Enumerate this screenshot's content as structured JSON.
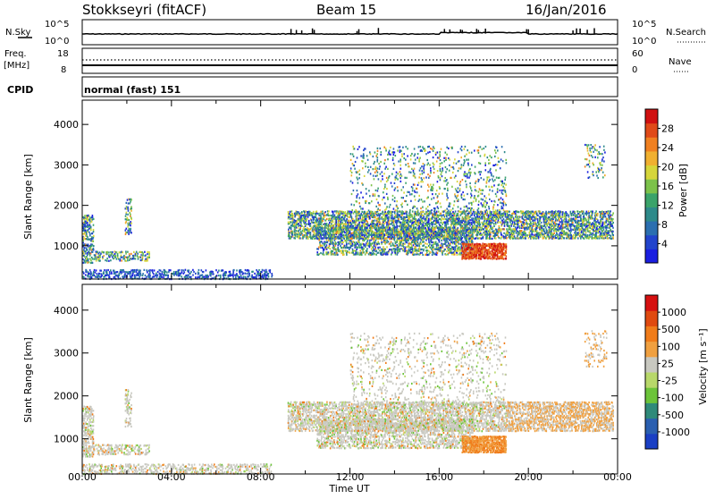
{
  "header": {
    "station": "Stokkseyri (fitACF)",
    "beam": "Beam 15",
    "date": "16/Jan/2016"
  },
  "strip_labels": {
    "nsky": "N.Sky",
    "nsearch": "N.Search",
    "freq_line1": "Freq.",
    "freq_line2": "[MHz]",
    "nave": "Nave",
    "cpid": "CPID",
    "cpid_value": "normal (fast) 151",
    "noise_left_top": "10^5",
    "noise_left_bottom": "10^0",
    "noise_right_top": "10^5",
    "noise_right_bottom": "10^0",
    "freq_left_top": "18",
    "freq_left_bottom": "8",
    "nave_right_top": "60",
    "nave_right_bottom": "0"
  },
  "colors": {
    "power": [
      "#1a1ee0",
      "#2244cc",
      "#2b6fb0",
      "#2e8a8a",
      "#3aa36a",
      "#7cc24a",
      "#d6d63a",
      "#f0b030",
      "#f08020",
      "#e04a18",
      "#d01010"
    ],
    "velocity": [
      "#1a3fc4",
      "#2a5fb0",
      "#2f8a7a",
      "#6cc43a",
      "#b8d86a",
      "#c8c8c0",
      "#f0a040",
      "#f07c1a",
      "#e04a10",
      "#d61010"
    ]
  },
  "chart_data": [
    {
      "type": "heatmap",
      "name": "power",
      "xlabel": "",
      "ylabel": "Slant Range [km]",
      "xlim": [
        0,
        24
      ],
      "ylim": [
        180,
        4600
      ],
      "yticks": [
        1000,
        2000,
        3000,
        4000
      ],
      "colorbar": {
        "label": "Power [dB]",
        "ticks": [
          "4",
          "8",
          "12",
          "16",
          "20",
          "24",
          "28"
        ]
      },
      "x_ticks": [
        "00:00",
        "04:00",
        "08:00",
        "12:00",
        "16:00",
        "20:00",
        "00:00"
      ]
    },
    {
      "type": "heatmap",
      "name": "velocity",
      "xlabel": "Time UT",
      "ylabel": "Slant Range [km]",
      "xlim": [
        0,
        24
      ],
      "ylim": [
        180,
        4600
      ],
      "yticks": [
        1000,
        2000,
        3000,
        4000
      ],
      "colorbar": {
        "label": "Velocity [m s⁻¹]",
        "ticks": [
          "1000",
          "500",
          "100",
          "25",
          "-25",
          "-100",
          "-500",
          "-1000"
        ]
      },
      "x_ticks": [
        "00:00",
        "04:00",
        "08:00",
        "12:00",
        "16:00",
        "20:00",
        "00:00"
      ]
    }
  ]
}
